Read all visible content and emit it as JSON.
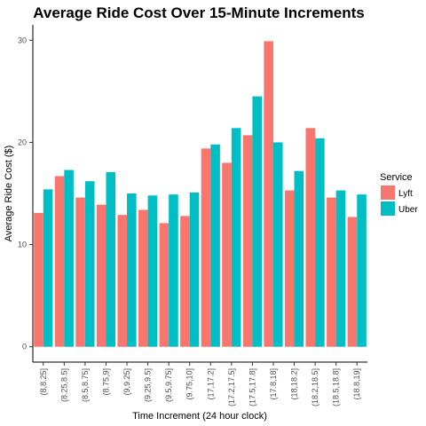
{
  "chart_data": {
    "type": "bar",
    "title": "Average Ride Cost Over 15-Minute Increments",
    "xlabel": "Time Increment (24 hour clock)",
    "ylabel": "Average Ride Cost ($)",
    "ylim": [
      -1.5,
      31.5
    ],
    "yticks": [
      0,
      10,
      20,
      30
    ],
    "grid": false,
    "legend": {
      "title": "Service",
      "placement": "right"
    },
    "categories": [
      "(8,8.25]",
      "(8.25,8.5]",
      "(8.5,8.75]",
      "(8.75,9]",
      "(9,9.25]",
      "(9.25,9.5]",
      "(9.5,9.75]",
      "(9.75,10]",
      "(17,17.2]",
      "(17.2,17.5]",
      "(17.5,17.8]",
      "(17.8,18]",
      "(18,18.2]",
      "(18.2,18.5]",
      "(18.5,18.8]",
      "(18.8,19]"
    ],
    "series": [
      {
        "name": "Lyft",
        "color": "#F8766D",
        "values": [
          13.1,
          16.7,
          14.6,
          13.9,
          12.9,
          13.4,
          12.1,
          12.8,
          19.4,
          18.0,
          20.7,
          29.9,
          15.3,
          21.4,
          14.6,
          12.7
        ]
      },
      {
        "name": "Uber",
        "color": "#00BFC4",
        "values": [
          15.4,
          17.3,
          16.2,
          17.1,
          15.0,
          14.8,
          14.9,
          15.1,
          19.8,
          21.4,
          24.5,
          20.0,
          17.2,
          20.4,
          15.3,
          14.9
        ]
      }
    ]
  }
}
